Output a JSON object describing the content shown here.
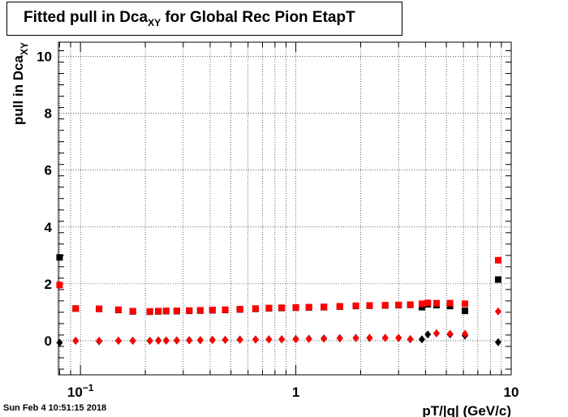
{
  "title": {
    "main": "Fitted pull in Dca",
    "sub": "XY",
    "rest": " for Global Rec Pion EtapT"
  },
  "timestamp": "Sun Feb  4 10:51:15 2018",
  "colors": {
    "series1": "#000000",
    "series2": "#ff0000",
    "grid": "#000000"
  },
  "chart_data": {
    "type": "scatter",
    "title": "Fitted pull in DcaXY for Global Rec Pion EtapT",
    "xlabel": "pT/|q| (GeV/c)",
    "ylabel_main": "pull in Dca",
    "ylabel_sub": "XY",
    "xscale": "log",
    "xlim": [
      0.079,
      10
    ],
    "ylim": [
      -1.2,
      10.5
    ],
    "grid": true,
    "x_ticks": [
      {
        "v": 0.1,
        "label": "10",
        "sup": "−1"
      },
      {
        "v": 1,
        "label": "1"
      },
      {
        "v": 10,
        "label": "10"
      }
    ],
    "y_ticks": [
      0,
      2,
      4,
      6,
      8,
      10
    ],
    "series": [
      {
        "marker": "square",
        "color": "#000000",
        "points": [
          [
            0.08,
            2.93
          ],
          [
            0.095,
            1.13
          ],
          [
            0.122,
            1.12
          ],
          [
            0.15,
            1.08
          ],
          [
            0.175,
            1.03
          ],
          [
            0.21,
            1.02
          ],
          [
            0.23,
            1.03
          ],
          [
            0.25,
            1.04
          ],
          [
            0.28,
            1.04
          ],
          [
            0.32,
            1.05
          ],
          [
            0.36,
            1.06
          ],
          [
            0.41,
            1.07
          ],
          [
            0.47,
            1.08
          ],
          [
            0.55,
            1.1
          ],
          [
            0.65,
            1.12
          ],
          [
            0.75,
            1.14
          ],
          [
            0.86,
            1.15
          ],
          [
            1.0,
            1.16
          ],
          [
            1.15,
            1.17
          ],
          [
            1.35,
            1.18
          ],
          [
            1.6,
            1.2
          ],
          [
            1.9,
            1.22
          ],
          [
            2.2,
            1.23
          ],
          [
            2.6,
            1.24
          ],
          [
            3.0,
            1.25
          ],
          [
            3.4,
            1.26
          ],
          [
            3.85,
            1.18
          ],
          [
            4.1,
            1.28
          ],
          [
            4.5,
            1.25
          ],
          [
            5.2,
            1.22
          ],
          [
            6.1,
            1.05
          ],
          [
            8.7,
            2.15
          ]
        ]
      },
      {
        "marker": "square",
        "color": "#ff0000",
        "points": [
          [
            0.08,
            1.96
          ],
          [
            0.095,
            1.13
          ],
          [
            0.122,
            1.12
          ],
          [
            0.15,
            1.09
          ],
          [
            0.175,
            1.04
          ],
          [
            0.21,
            1.03
          ],
          [
            0.23,
            1.04
          ],
          [
            0.25,
            1.05
          ],
          [
            0.28,
            1.05
          ],
          [
            0.32,
            1.06
          ],
          [
            0.36,
            1.07
          ],
          [
            0.41,
            1.08
          ],
          [
            0.47,
            1.09
          ],
          [
            0.55,
            1.11
          ],
          [
            0.65,
            1.13
          ],
          [
            0.75,
            1.15
          ],
          [
            0.86,
            1.16
          ],
          [
            1.0,
            1.17
          ],
          [
            1.15,
            1.18
          ],
          [
            1.35,
            1.19
          ],
          [
            1.6,
            1.21
          ],
          [
            1.9,
            1.23
          ],
          [
            2.2,
            1.24
          ],
          [
            2.6,
            1.25
          ],
          [
            3.0,
            1.26
          ],
          [
            3.4,
            1.27
          ],
          [
            3.85,
            1.3
          ],
          [
            4.1,
            1.33
          ],
          [
            4.5,
            1.32
          ],
          [
            5.2,
            1.32
          ],
          [
            6.1,
            1.3
          ],
          [
            8.7,
            2.83
          ]
        ]
      },
      {
        "marker": "diamond",
        "color": "#000000",
        "points": [
          [
            0.08,
            -0.07
          ],
          [
            0.095,
            0.0
          ],
          [
            0.122,
            -0.02
          ],
          [
            0.15,
            0.0
          ],
          [
            0.175,
            0.0
          ],
          [
            0.21,
            0.0
          ],
          [
            0.23,
            0.01
          ],
          [
            0.25,
            0.01
          ],
          [
            0.28,
            0.01
          ],
          [
            0.32,
            0.02
          ],
          [
            0.36,
            0.02
          ],
          [
            0.41,
            0.03
          ],
          [
            0.47,
            0.03
          ],
          [
            0.55,
            0.04
          ],
          [
            0.65,
            0.04
          ],
          [
            0.75,
            0.05
          ],
          [
            0.86,
            0.05
          ],
          [
            1.0,
            0.06
          ],
          [
            1.15,
            0.07
          ],
          [
            1.35,
            0.08
          ],
          [
            1.6,
            0.09
          ],
          [
            1.9,
            0.1
          ],
          [
            2.2,
            0.1
          ],
          [
            2.6,
            0.1
          ],
          [
            3.0,
            0.1
          ],
          [
            3.4,
            0.05
          ],
          [
            3.85,
            0.05
          ],
          [
            4.1,
            0.22
          ],
          [
            4.5,
            0.26
          ],
          [
            5.2,
            0.22
          ],
          [
            6.1,
            0.18
          ],
          [
            8.7,
            -0.05
          ]
        ]
      },
      {
        "marker": "diamond",
        "color": "#ff0000",
        "points": [
          [
            0.095,
            0.0
          ],
          [
            0.122,
            0.0
          ],
          [
            0.15,
            0.0
          ],
          [
            0.175,
            0.0
          ],
          [
            0.21,
            0.0
          ],
          [
            0.23,
            0.0
          ],
          [
            0.25,
            0.0
          ],
          [
            0.28,
            0.01
          ],
          [
            0.32,
            0.01
          ],
          [
            0.36,
            0.02
          ],
          [
            0.41,
            0.02
          ],
          [
            0.47,
            0.03
          ],
          [
            0.55,
            0.03
          ],
          [
            0.65,
            0.04
          ],
          [
            0.75,
            0.04
          ],
          [
            0.86,
            0.05
          ],
          [
            1.0,
            0.05
          ],
          [
            1.15,
            0.06
          ],
          [
            1.35,
            0.07
          ],
          [
            1.6,
            0.08
          ],
          [
            1.9,
            0.09
          ],
          [
            2.2,
            0.1
          ],
          [
            2.6,
            0.1
          ],
          [
            3.0,
            0.1
          ],
          [
            3.4,
            0.06
          ],
          [
            4.5,
            0.26
          ],
          [
            5.2,
            0.24
          ],
          [
            6.1,
            0.24
          ],
          [
            8.7,
            1.03
          ]
        ]
      }
    ]
  }
}
